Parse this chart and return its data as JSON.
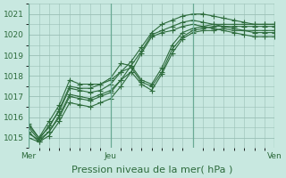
{
  "title": "",
  "xlabel": "Pression niveau de la mer( hPa )",
  "ylabel": "",
  "bg_color": "#c8e8e0",
  "plot_bg_color": "#c8e8e0",
  "grid_color": "#9abfb5",
  "line_color": "#2d6b3c",
  "ylim": [
    1014.5,
    1021.5
  ],
  "xlim": [
    0,
    24
  ],
  "yticks": [
    1015,
    1016,
    1017,
    1018,
    1019,
    1020,
    1021
  ],
  "xtick_positions": [
    0,
    8,
    16,
    24
  ],
  "xtick_labels": [
    "Mer",
    "Jeu",
    "",
    "Ven"
  ],
  "vlines": [
    0,
    8,
    16,
    24
  ],
  "series": [
    [
      1015.7,
      1015.0,
      1015.5,
      1016.4,
      1017.5,
      1017.4,
      1017.4,
      1017.6,
      1017.8,
      1018.2,
      1018.7,
      1019.4,
      1020.1,
      1020.5,
      1020.7,
      1020.9,
      1021.0,
      1021.0,
      1020.9,
      1020.8,
      1020.7,
      1020.6,
      1020.5,
      1020.5,
      1020.5
    ],
    [
      1015.2,
      1014.9,
      1015.3,
      1016.1,
      1017.1,
      1017.0,
      1016.9,
      1017.1,
      1017.3,
      1017.8,
      1018.5,
      1019.2,
      1020.0,
      1020.2,
      1020.4,
      1020.6,
      1020.7,
      1020.6,
      1020.5,
      1020.4,
      1020.3,
      1020.2,
      1020.2,
      1020.2,
      1020.2
    ],
    [
      1015.0,
      1014.8,
      1015.1,
      1015.8,
      1016.7,
      1016.6,
      1016.5,
      1016.7,
      1016.9,
      1017.5,
      1018.2,
      1019.1,
      1019.9,
      1020.1,
      1020.2,
      1020.4,
      1020.5,
      1020.4,
      1020.3,
      1020.2,
      1020.1,
      1020.0,
      1019.9,
      1019.9,
      1019.9
    ],
    [
      1015.6,
      1015.0,
      1015.8,
      1016.6,
      1017.8,
      1017.6,
      1017.6,
      1017.6,
      1017.9,
      1018.6,
      1018.5,
      1017.8,
      1017.6,
      1018.4,
      1019.5,
      1020.1,
      1020.3,
      1020.4,
      1020.5,
      1020.5,
      1020.5,
      1020.5,
      1020.5,
      1020.5,
      1020.5
    ],
    [
      1015.5,
      1014.9,
      1015.6,
      1016.3,
      1017.4,
      1017.3,
      1017.2,
      1017.3,
      1017.6,
      1018.2,
      1018.4,
      1017.7,
      1017.5,
      1018.2,
      1019.3,
      1019.9,
      1020.2,
      1020.3,
      1020.4,
      1020.4,
      1020.4,
      1020.4,
      1020.4,
      1020.4,
      1020.4
    ],
    [
      1015.3,
      1014.8,
      1015.3,
      1016.0,
      1017.0,
      1016.9,
      1016.8,
      1017.0,
      1017.2,
      1017.8,
      1018.2,
      1017.6,
      1017.3,
      1018.1,
      1019.1,
      1019.8,
      1020.1,
      1020.2,
      1020.2,
      1020.3,
      1020.2,
      1020.2,
      1020.1,
      1020.1,
      1020.1
    ]
  ],
  "marker": "+",
  "markersize": 4.0,
  "linewidth": 0.8,
  "xlabel_fontsize": 8,
  "tick_fontsize": 6.5
}
